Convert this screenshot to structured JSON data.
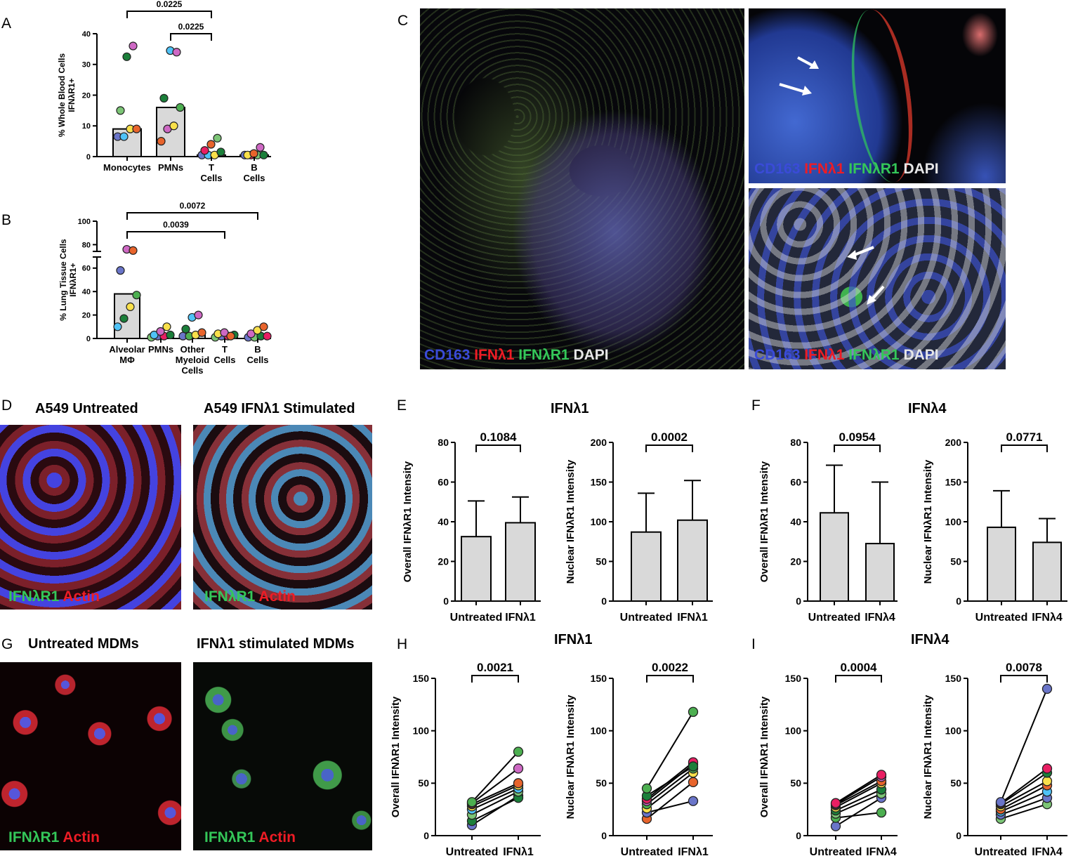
{
  "panels": {
    "A": "A",
    "B": "B",
    "C": "C",
    "D": "D",
    "E": "E",
    "F": "F",
    "G": "G",
    "H": "H",
    "I": "I"
  },
  "colors": {
    "bar_fill": "#d9d9d9",
    "dot_palette": [
      "#e91e63",
      "#1b7f3a",
      "#4fc3f7",
      "#f9e04b",
      "#e8642c",
      "#6a75c9",
      "#ce68c4",
      "#4caf50",
      "#9c27b0",
      "#7cc576"
    ],
    "stain_blue": "#3a4bd8",
    "stain_red": "#ee1c25",
    "stain_green": "#34c759",
    "stain_white": "#e6e6e6"
  },
  "micro_c": {
    "main": [
      "CD163",
      "IFNλ1",
      "IFNλR1",
      "DAPI"
    ],
    "top": [
      "CD163",
      "IFNλ1",
      "IFNλR1",
      "DAPI"
    ],
    "bottom": [
      "CD163",
      "IFNλ1",
      "IFNλR1",
      "DAPI"
    ]
  },
  "micro_d": {
    "left_title": "A549 Untreated",
    "right_title": "A549 IFNλ1 Stimulated",
    "stain_green": "IFNλR1",
    "stain_red": "Actin"
  },
  "micro_g": {
    "left_title": "Untreated MDMs",
    "right_title": "IFNλ1 stimulated MDMs",
    "stain_green": "IFNλR1",
    "stain_red": "Actin"
  },
  "group_titles": {
    "E": "IFNλ1",
    "F": "IFNλ4",
    "H": "IFNλ1",
    "I": "IFNλ4"
  },
  "chart_data": [
    {
      "id": "A",
      "type": "bar",
      "ylabel": "% Whole Blood Cells IFNλR1+",
      "ylim": [
        0,
        40
      ],
      "yticks": [
        0,
        10,
        20,
        30,
        40
      ],
      "categories": [
        "Monocytes",
        "PMNs",
        "T Cells",
        "B Cells"
      ],
      "values": [
        9,
        16,
        0.5,
        0.5
      ],
      "points": [
        [
          {
            "v": 6.5,
            "c": "#6a75c9"
          },
          {
            "v": 6.5,
            "c": "#4fc3f7"
          },
          {
            "v": 9,
            "c": "#f9e04b"
          },
          {
            "v": 9,
            "c": "#e8642c"
          },
          {
            "v": 15,
            "c": "#7cc576"
          },
          {
            "v": 32.5,
            "c": "#1b7f3a"
          },
          {
            "v": 36,
            "c": "#ce68c4"
          }
        ],
        [
          {
            "v": 5,
            "c": "#e8642c"
          },
          {
            "v": 9,
            "c": "#ce68c4"
          },
          {
            "v": 10,
            "c": "#f9e04b"
          },
          {
            "v": 16,
            "c": "#4caf50"
          },
          {
            "v": 19,
            "c": "#1b7f3a"
          },
          {
            "v": 34.5,
            "c": "#4fc3f7"
          },
          {
            "v": 34,
            "c": "#ce68c4"
          }
        ],
        [
          {
            "v": 0.5,
            "c": "#6a75c9"
          },
          {
            "v": 0.5,
            "c": "#4fc3f7"
          },
          {
            "v": 0.5,
            "c": "#f9e04b"
          },
          {
            "v": 1.5,
            "c": "#1b7f3a"
          },
          {
            "v": 2,
            "c": "#e91e63"
          },
          {
            "v": 4,
            "c": "#e8642c"
          },
          {
            "v": 6,
            "c": "#7cc576"
          }
        ],
        [
          {
            "v": 0.5,
            "c": "#6a75c9"
          },
          {
            "v": 0.5,
            "c": "#e91e63"
          },
          {
            "v": 0.5,
            "c": "#7cc576"
          },
          {
            "v": 0.5,
            "c": "#1b7f3a"
          },
          {
            "v": 0.5,
            "c": "#f9e04b"
          },
          {
            "v": 1,
            "c": "#e8642c"
          },
          {
            "v": 3,
            "c": "#ce68c4"
          }
        ]
      ],
      "brackets": [
        {
          "from": 0,
          "to": 2,
          "label": "0.0225"
        },
        {
          "from": 1,
          "to": 2,
          "label": "0.0225"
        }
      ]
    },
    {
      "id": "B",
      "type": "bar",
      "ylabel": "% Lung Tissue Cells IFNλR1+",
      "ylim": [
        0,
        100
      ],
      "yticks": [
        0,
        20,
        40,
        60,
        80,
        100
      ],
      "categories": [
        "Alveolar MΦ",
        "PMNs",
        "Other Myeloid Cells",
        "T Cells",
        "B Cells"
      ],
      "values": [
        38,
        2,
        3,
        2,
        2
      ],
      "points": [
        [
          {
            "v": 10,
            "c": "#4fc3f7"
          },
          {
            "v": 17,
            "c": "#1b7f3a"
          },
          {
            "v": 27,
            "c": "#f9e04b"
          },
          {
            "v": 37,
            "c": "#4caf50"
          },
          {
            "v": 58,
            "c": "#6a75c9"
          },
          {
            "v": 76,
            "c": "#ce68c4"
          },
          {
            "v": 75,
            "c": "#e8642c"
          }
        ],
        [
          {
            "v": 1,
            "c": "#7cc576"
          },
          {
            "v": 2,
            "c": "#6a75c9"
          },
          {
            "v": 2,
            "c": "#e91e63"
          },
          {
            "v": 3,
            "c": "#1b7f3a"
          },
          {
            "v": 3,
            "c": "#4fc3f7"
          },
          {
            "v": 6,
            "c": "#ce68c4"
          },
          {
            "v": 10,
            "c": "#f9e04b"
          }
        ],
        [
          {
            "v": 2,
            "c": "#6a75c9"
          },
          {
            "v": 2,
            "c": "#4caf50"
          },
          {
            "v": 3,
            "c": "#f9e04b"
          },
          {
            "v": 5,
            "c": "#e8642c"
          },
          {
            "v": 8,
            "c": "#1b7f3a"
          },
          {
            "v": 18,
            "c": "#4fc3f7"
          },
          {
            "v": 20,
            "c": "#ce68c4"
          }
        ],
        [
          {
            "v": 1,
            "c": "#7cc576"
          },
          {
            "v": 2,
            "c": "#6a75c9"
          },
          {
            "v": 2,
            "c": "#e91e63"
          },
          {
            "v": 3,
            "c": "#1b7f3a"
          },
          {
            "v": 4,
            "c": "#f9e04b"
          },
          {
            "v": 5,
            "c": "#ce68c4"
          },
          {
            "v": 2,
            "c": "#e8642c"
          }
        ],
        [
          {
            "v": 1,
            "c": "#6a75c9"
          },
          {
            "v": 1,
            "c": "#7cc576"
          },
          {
            "v": 2,
            "c": "#1b7f3a"
          },
          {
            "v": 2,
            "c": "#e91e63"
          },
          {
            "v": 4,
            "c": "#ce68c4"
          },
          {
            "v": 7,
            "c": "#f9e04b"
          },
          {
            "v": 10,
            "c": "#e8642c"
          }
        ]
      ],
      "brackets": [
        {
          "from": 0,
          "to": 4,
          "label": "0.0072"
        },
        {
          "from": 0,
          "to": 3,
          "label": "0.0039"
        }
      ]
    },
    {
      "id": "E1",
      "type": "bar",
      "ylabel": "Overall IFNλR1 Intensity",
      "ylim": [
        0,
        80
      ],
      "yticks": [
        0,
        20,
        40,
        60,
        80
      ],
      "categories": [
        "Untreated",
        "IFNλ1"
      ],
      "values": [
        32.5,
        39.5
      ],
      "errors": [
        18,
        13
      ],
      "bracket": "0.1084"
    },
    {
      "id": "E2",
      "type": "bar",
      "ylabel": "Nuclear IFNλR1 Intensity",
      "ylim": [
        0,
        200
      ],
      "yticks": [
        0,
        50,
        100,
        150,
        200
      ],
      "categories": [
        "Untreated",
        "IFNλ1"
      ],
      "values": [
        87,
        102
      ],
      "errors": [
        49,
        50
      ],
      "bracket": "0.0002"
    },
    {
      "id": "F1",
      "type": "bar",
      "ylabel": "Overall IFNλR1 Intensity",
      "ylim": [
        0,
        80
      ],
      "yticks": [
        0,
        20,
        40,
        60,
        80
      ],
      "categories": [
        "Untreated",
        "IFNλ4"
      ],
      "values": [
        44.5,
        29
      ],
      "errors": [
        24,
        31
      ],
      "bracket": "0.0954"
    },
    {
      "id": "F2",
      "type": "bar",
      "ylabel": "Nuclear IFNλR1 Intensity",
      "ylim": [
        0,
        200
      ],
      "yticks": [
        0,
        50,
        100,
        150,
        200
      ],
      "categories": [
        "Untreated",
        "IFNλ4"
      ],
      "values": [
        93,
        74
      ],
      "errors": [
        46,
        30
      ],
      "bracket": "0.0771"
    },
    {
      "id": "H1",
      "type": "line",
      "ylabel": "Overall IFNλR1 Intensity",
      "ylim": [
        0,
        150
      ],
      "yticks": [
        0,
        50,
        100,
        150
      ],
      "categories": [
        "Untreated",
        "IFNλ1"
      ],
      "pairs": [
        [
          10,
          38,
          "#6a75c9"
        ],
        [
          14,
          36,
          "#1b7f3a"
        ],
        [
          20,
          42,
          "#7cc576"
        ],
        [
          25,
          45,
          "#4fc3f7"
        ],
        [
          28,
          48,
          "#f9e04b"
        ],
        [
          30,
          50,
          "#e8642c"
        ],
        [
          31,
          64,
          "#ce68c4"
        ],
        [
          32,
          80,
          "#4caf50"
        ]
      ],
      "bracket": "0.0021"
    },
    {
      "id": "H2",
      "type": "line",
      "ylabel": "Nuclear IFNλR1 Intensity",
      "ylim": [
        0,
        150
      ],
      "yticks": [
        0,
        50,
        100,
        150
      ],
      "categories": [
        "Untreated",
        "IFNλ1"
      ],
      "pairs": [
        [
          16,
          51,
          "#e8642c"
        ],
        [
          22,
          33,
          "#6a75c9"
        ],
        [
          26,
          60,
          "#f9e04b"
        ],
        [
          30,
          64,
          "#4caf50"
        ],
        [
          33,
          68,
          "#ce68c4"
        ],
        [
          35,
          70,
          "#e91e63"
        ],
        [
          38,
          66,
          "#1b7f3a"
        ],
        [
          45,
          118,
          "#4caf50"
        ]
      ],
      "bracket": "0.0022"
    },
    {
      "id": "I1",
      "type": "line",
      "ylabel": "Overall IFNλR1 Intensity",
      "ylim": [
        0,
        150
      ],
      "yticks": [
        0,
        50,
        100,
        150
      ],
      "categories": [
        "Untreated",
        "IFNλ4"
      ],
      "pairs": [
        [
          9,
          36,
          "#6a75c9"
        ],
        [
          17,
          22,
          "#4caf50"
        ],
        [
          21,
          40,
          "#7cc576"
        ],
        [
          24,
          44,
          "#1b7f3a"
        ],
        [
          27,
          50,
          "#f9e04b"
        ],
        [
          29,
          52,
          "#e8642c"
        ],
        [
          30,
          56,
          "#ce68c4"
        ],
        [
          31,
          58,
          "#e91e63"
        ]
      ],
      "bracket": "0.0004"
    },
    {
      "id": "I2",
      "type": "line",
      "ylabel": "Nuclear IFNλR1 Intensity",
      "ylim": [
        0,
        150
      ],
      "yticks": [
        0,
        50,
        100,
        150
      ],
      "categories": [
        "Untreated",
        "IFNλ4"
      ],
      "pairs": [
        [
          16,
          30,
          "#7cc576"
        ],
        [
          20,
          36,
          "#6a75c9"
        ],
        [
          23,
          42,
          "#4fc3f7"
        ],
        [
          25,
          48,
          "#e8642c"
        ],
        [
          28,
          52,
          "#f9e04b"
        ],
        [
          30,
          60,
          "#1b7f3a"
        ],
        [
          31,
          64,
          "#e91e63"
        ],
        [
          32,
          140,
          "#6a75c9"
        ]
      ],
      "bracket": "0.0078"
    }
  ]
}
